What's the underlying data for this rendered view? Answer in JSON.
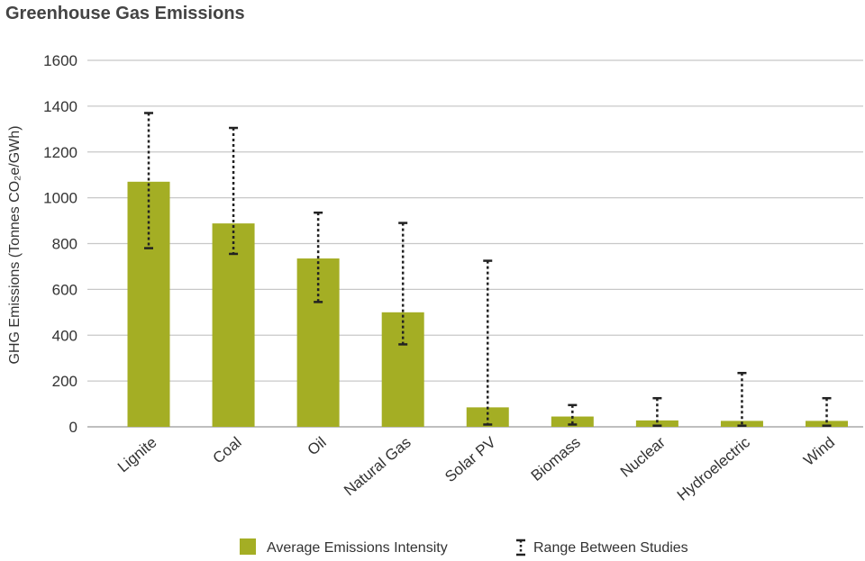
{
  "chart_data": {
    "type": "bar",
    "title": "Greenhouse Gas Emissions",
    "ylabel": "GHG Emissions (Tonnes CO₂e/GWh)",
    "ylim": [
      0,
      1600
    ],
    "yticks": [
      0,
      200,
      400,
      600,
      800,
      1000,
      1200,
      1400,
      1600
    ],
    "grid": true,
    "bar_color": "#a4ae24",
    "error_color": "#222222",
    "categories": [
      "Lignite",
      "Coal",
      "Oil",
      "Natural Gas",
      "Solar PV",
      "Biomass",
      "Nuclear",
      "Hydroelectric",
      "Wind"
    ],
    "series": [
      {
        "name": "Average Emissions Intensity",
        "values": [
          1070,
          888,
          735,
          500,
          85,
          45,
          28,
          26,
          26
        ]
      }
    ],
    "ranges": [
      {
        "name": "Range Between Studies",
        "low": [
          780,
          755,
          545,
          360,
          10,
          10,
          5,
          5,
          5
        ],
        "high": [
          1370,
          1305,
          935,
          890,
          725,
          95,
          125,
          235,
          125
        ]
      }
    ],
    "legend": {
      "position": "bottom",
      "entries": [
        "Average Emissions Intensity",
        "Range Between Studies"
      ]
    }
  }
}
